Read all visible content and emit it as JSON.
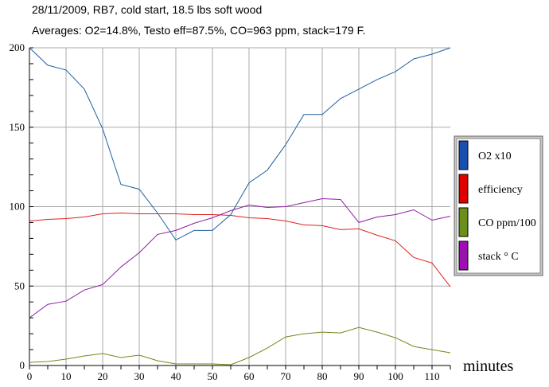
{
  "title": "28/11/2009, RB7, cold start, 18.5 lbs soft wood",
  "subtitle": "Averages: O2=14.8%, Testo eff=87.5%, CO=963 ppm, stack=179 F.",
  "chart_data": {
    "type": "line",
    "title": "28/11/2009, RB7, cold start, 18.5 lbs soft wood",
    "subtitle": "Averages: O2=14.8%, Testo eff=87.5%, CO=963 ppm, stack=179 F.",
    "xlabel": "minutes",
    "ylabel": "",
    "xlim": [
      0,
      115
    ],
    "ylim": [
      0,
      200
    ],
    "x_ticks": [
      0,
      10,
      20,
      30,
      40,
      50,
      60,
      70,
      80,
      90,
      100,
      110
    ],
    "y_ticks": [
      0,
      50,
      100,
      150,
      200
    ],
    "grid": true,
    "legend_position": "right",
    "x": [
      0,
      5,
      10,
      15,
      20,
      25,
      30,
      35,
      40,
      45,
      50,
      55,
      60,
      65,
      70,
      75,
      80,
      85,
      90,
      95,
      100,
      105,
      110,
      115
    ],
    "series": [
      {
        "name": "O2 x10",
        "color": "#1f5f9f",
        "legend_color": "#1a4fb0",
        "values": [
          200,
          189,
          186,
          174,
          149,
          114,
          111,
          96,
          79,
          85,
          85,
          95,
          115,
          123,
          139,
          158,
          158,
          168,
          174,
          180,
          185,
          193,
          196,
          200
        ]
      },
      {
        "name": "efficiency",
        "color": "#e02020",
        "legend_color": "#e00000",
        "values": [
          91,
          92,
          92.5,
          93.5,
          95.5,
          96,
          95.5,
          95.5,
          95.5,
          95,
          95,
          94.5,
          93,
          92.5,
          91,
          88.5,
          88,
          85.5,
          86,
          82,
          78.5,
          68,
          64.5,
          49.5
        ]
      },
      {
        "name": "CO ppm/100",
        "color": "#6f8a1a",
        "legend_color": "#6a8f1a",
        "values": [
          2,
          2.5,
          4,
          6,
          7.5,
          5,
          6.5,
          3,
          1,
          1,
          1,
          0.5,
          5,
          11,
          18,
          20,
          21,
          20.5,
          24,
          21,
          17.5,
          12,
          10,
          8
        ]
      },
      {
        "name": "stack ° C",
        "color": "#8f1aa6",
        "legend_color": "#9a10b0",
        "values": [
          30,
          38.5,
          40.5,
          47.5,
          51,
          62,
          71,
          82.5,
          85,
          89.5,
          93,
          97.5,
          101,
          99.5,
          100,
          102.5,
          105,
          104.5,
          90,
          93.5,
          95,
          98,
          91.5,
          94
        ]
      }
    ]
  }
}
